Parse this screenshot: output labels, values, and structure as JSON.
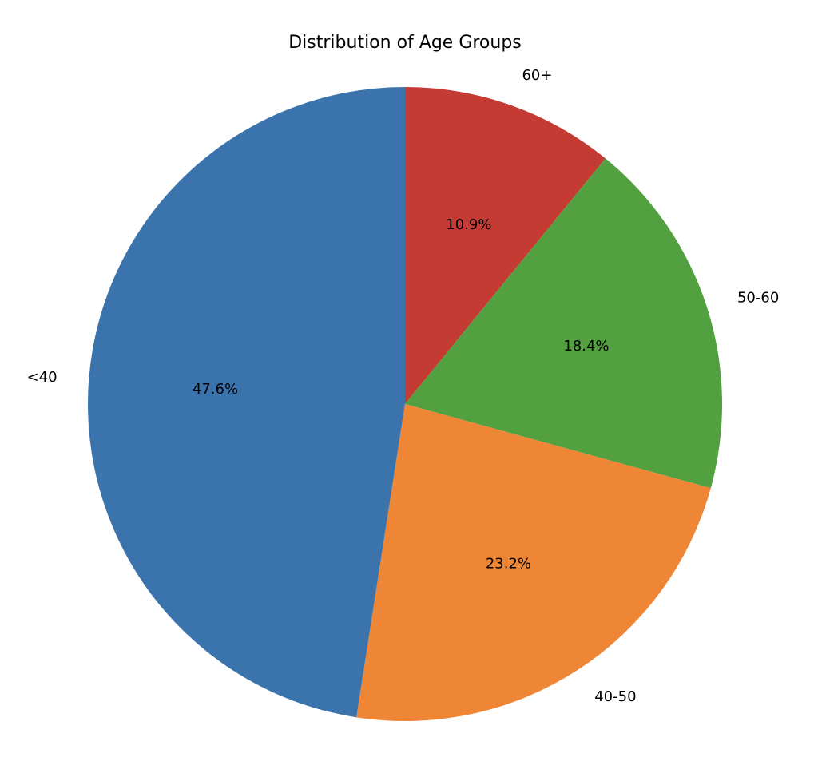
{
  "chart_data": {
    "type": "pie",
    "title": "Distribution of Age Groups",
    "categories": [
      "60+",
      "50-60",
      "40-50",
      "<40"
    ],
    "values": [
      10.9,
      18.4,
      23.2,
      47.6
    ],
    "percent_labels": [
      "10.9%",
      "18.4%",
      "23.2%",
      "47.6%"
    ],
    "colors": [
      "#c43b33",
      "#52a040",
      "#ee8636",
      "#3b74ad"
    ],
    "start_angle": "top (12 o'clock)",
    "direction": "clockwise",
    "legend": "none"
  }
}
